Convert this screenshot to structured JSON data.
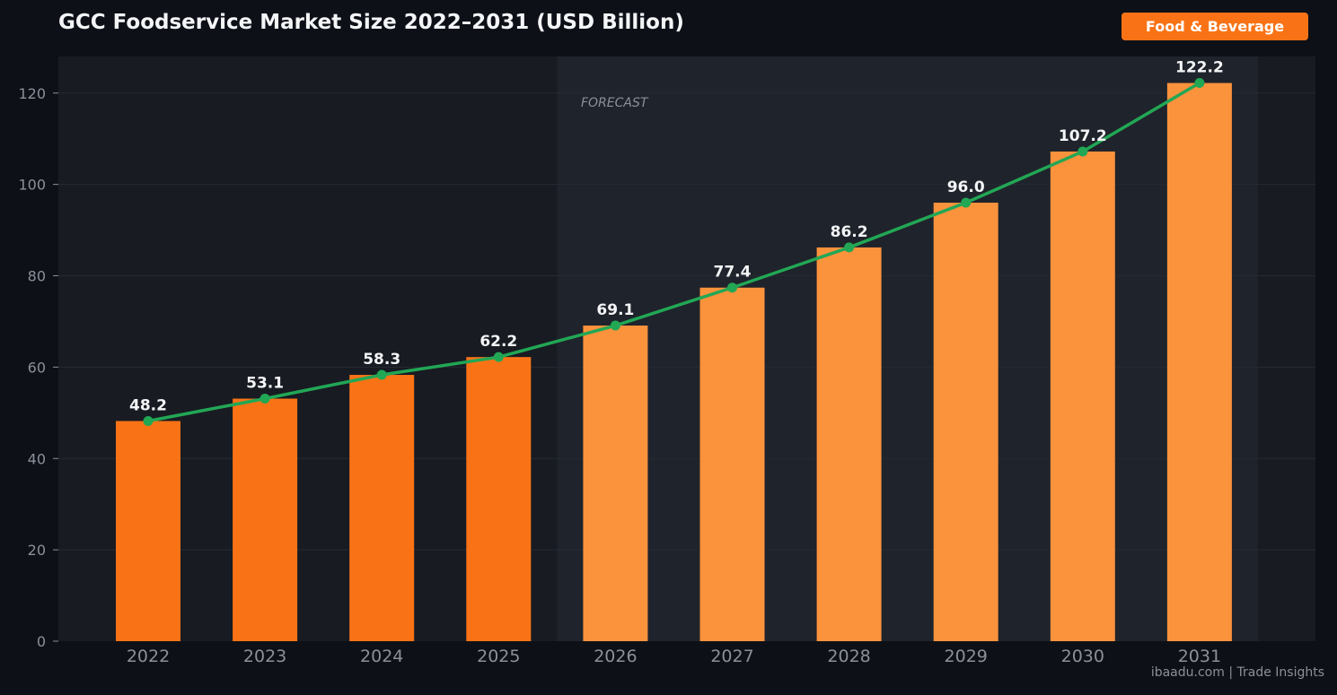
{
  "header": {
    "title": "GCC Foodservice Market Size 2022–2031 (USD Billion)",
    "badge": "Food & Beverage"
  },
  "footer": {
    "credit": "ibaadu.com | Trade Insights"
  },
  "colors": {
    "background": "#0d1017",
    "plot_background": "#181b22",
    "forecast_background": "#1f232b",
    "actual_bar": "#f97316",
    "forecast_bar": "#fb923c",
    "trend_line": "#22a755",
    "badge": "#f97316"
  },
  "chart_data": {
    "type": "bar",
    "title": "GCC Foodservice Market Size 2022–2031 (USD Billion)",
    "xlabel": "",
    "ylabel": "",
    "categories": [
      "2022",
      "2023",
      "2024",
      "2025",
      "2026",
      "2027",
      "2028",
      "2029",
      "2030",
      "2031"
    ],
    "values": [
      48.2,
      53.1,
      58.3,
      62.2,
      69.1,
      77.4,
      86.2,
      96.0,
      107.2,
      122.2
    ],
    "value_labels": [
      "48.2",
      "53.1",
      "58.3",
      "62.2",
      "69.1",
      "77.4",
      "86.2",
      "96.0",
      "107.2",
      "122.2"
    ],
    "forecast_from": "2026",
    "forecast_label": "FORECAST",
    "overlay": "line with markers through bar tops",
    "ylim": [
      0,
      128
    ],
    "yticks": [
      0,
      20,
      40,
      60,
      80,
      100,
      120
    ],
    "grid": true
  }
}
